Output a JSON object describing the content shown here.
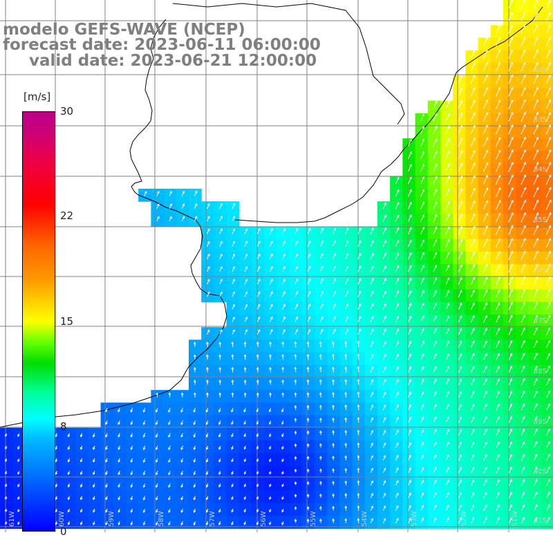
{
  "title": {
    "model": "modelo GEFS-WAVE (NCEP)",
    "forecast": "forecast date: 2023-06-11 06:00:00",
    "valid": "valid date: 2023-06-21 12:00:00"
  },
  "colorbar": {
    "unit": "[m/s]",
    "ticks": [
      "30",
      "22",
      "15",
      "8",
      "0"
    ],
    "tick_values": [
      30,
      22,
      15,
      8,
      0
    ],
    "range": [
      0,
      30
    ]
  },
  "map": {
    "lon_labels": [
      "61W",
      "60W",
      "59W",
      "58W",
      "57W",
      "56W",
      "55W",
      "54W",
      "53W",
      "52W",
      "51W"
    ],
    "lat_labels": [
      "32S",
      "33S",
      "34S",
      "35S",
      "36S",
      "37S",
      "38S",
      "39S",
      "40S",
      "41S"
    ],
    "land_color": "#ffffff",
    "grid_color": "#808080",
    "coast_color": "#000000",
    "arrow_color": "#ffffff"
  }
}
